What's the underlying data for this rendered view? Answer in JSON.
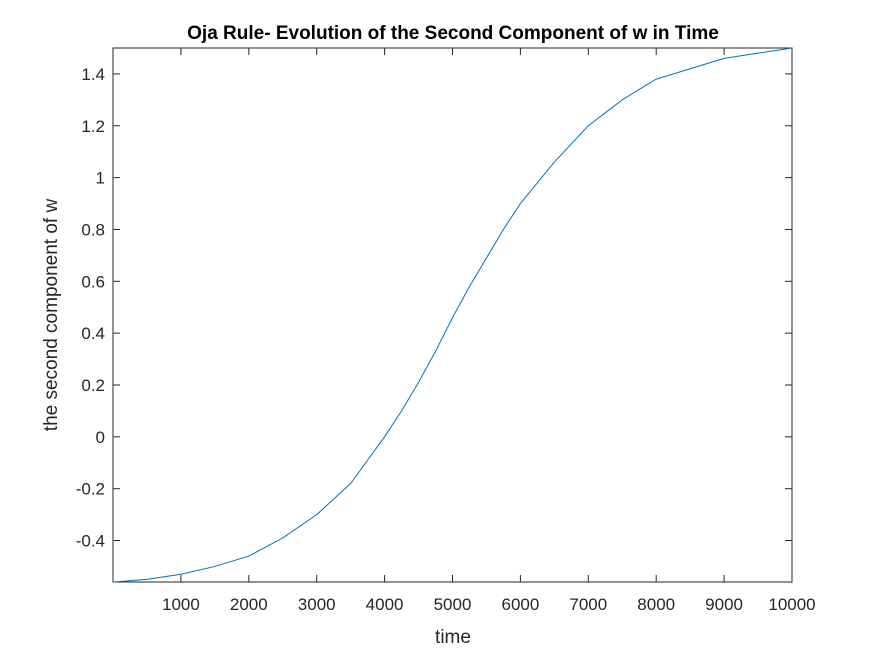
{
  "chart_data": {
    "type": "line",
    "title": "Oja Rule- Evolution of the Second Component of w in Time",
    "xlabel": "time",
    "ylabel": "the second component of w",
    "xlim": [
      0,
      10000
    ],
    "ylim": [
      -0.56,
      1.5
    ],
    "x_ticks": [
      1000,
      2000,
      3000,
      4000,
      5000,
      6000,
      7000,
      8000,
      9000,
      10000
    ],
    "x_tick_labels": [
      "1000",
      "2000",
      "3000",
      "4000",
      "5000",
      "6000",
      "7000",
      "8000",
      "9000",
      "10000"
    ],
    "y_ticks": [
      -0.4,
      -0.2,
      0,
      0.2,
      0.4,
      0.6,
      0.8,
      1,
      1.2,
      1.4
    ],
    "y_tick_labels": [
      "-0.4",
      "-0.2",
      "0",
      "0.2",
      "0.4",
      "0.6",
      "0.8",
      "1",
      "1.2",
      "1.4"
    ],
    "grid": false,
    "line_color": "#0072BD",
    "series": [
      {
        "x": [
          0,
          500,
          1000,
          1500,
          2000,
          2500,
          3000,
          3500,
          4000,
          4250,
          4500,
          4750,
          5000,
          5250,
          5500,
          5750,
          6000,
          6250,
          6500,
          6750,
          7000,
          7250,
          7500,
          7750,
          8000,
          8500,
          9000,
          9500,
          10000
        ],
        "y": [
          -0.56,
          -0.55,
          -0.53,
          -0.5,
          -0.46,
          -0.39,
          -0.3,
          -0.18,
          0.0,
          0.1,
          0.21,
          0.33,
          0.46,
          0.58,
          0.69,
          0.8,
          0.9,
          0.98,
          1.06,
          1.13,
          1.2,
          1.25,
          1.3,
          1.34,
          1.38,
          1.42,
          1.46,
          1.48,
          1.5
        ]
      }
    ]
  }
}
